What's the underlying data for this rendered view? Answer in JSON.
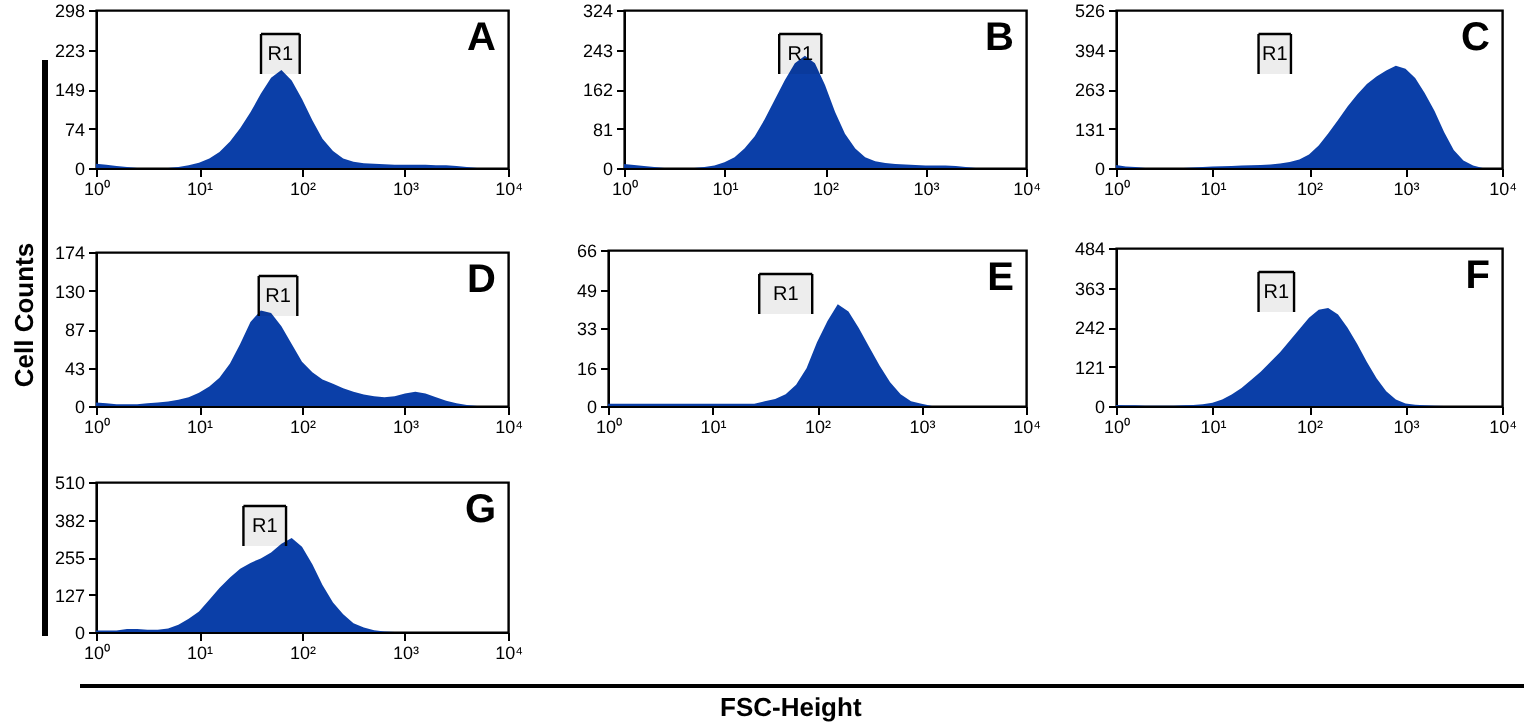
{
  "chart_data": [
    {
      "type": "area",
      "title": "A",
      "log": "x",
      "xlim": [
        1,
        10000
      ],
      "xticks": [
        {
          "value": 1,
          "label": "10⁰"
        },
        {
          "value": 10,
          "label": "10¹"
        },
        {
          "value": 100,
          "label": "10²"
        },
        {
          "value": 1000,
          "label": "10³"
        },
        {
          "value": 10000,
          "label": "10⁴"
        }
      ],
      "ylim": [
        0,
        298
      ],
      "yticks": [
        0,
        74,
        149,
        223,
        298
      ],
      "x": [
        1,
        1.26,
        1.58,
        2,
        2.51,
        3.16,
        3.98,
        5.01,
        6.31,
        7.94,
        10,
        12.6,
        15.8,
        20,
        25.1,
        31.6,
        39.8,
        50.1,
        63.1,
        79.4,
        100,
        126,
        158,
        200,
        251,
        316,
        398,
        501,
        631,
        794,
        1000,
        1260,
        1580,
        2000,
        2510,
        3160,
        3980,
        5010,
        6310,
        7940,
        10000
      ],
      "series": [
        {
          "color": "#0b3fa8",
          "values": [
            8,
            6,
            4,
            2,
            0,
            0,
            0,
            0,
            2,
            5,
            10,
            18,
            30,
            50,
            75,
            105,
            140,
            170,
            185,
            165,
            130,
            90,
            55,
            32,
            18,
            12,
            9,
            8,
            7,
            6,
            6,
            6,
            6,
            5,
            5,
            4,
            2,
            0,
            0,
            0,
            0
          ]
        }
      ],
      "bands": [
        {
          "axis": "x",
          "from": 40,
          "to": 95,
          "label": "R1"
        }
      ]
    },
    {
      "type": "area",
      "title": "B",
      "log": "x",
      "xlim": [
        1,
        10000
      ],
      "xticks": [
        {
          "value": 1,
          "label": "10⁰"
        },
        {
          "value": 10,
          "label": "10¹"
        },
        {
          "value": 100,
          "label": "10²"
        },
        {
          "value": 1000,
          "label": "10³"
        },
        {
          "value": 10000,
          "label": "10⁴"
        }
      ],
      "ylim": [
        0,
        324
      ],
      "yticks": [
        0,
        81,
        162,
        243,
        324
      ],
      "x": [
        1,
        1.26,
        1.58,
        2,
        2.51,
        3.16,
        3.98,
        5.01,
        6.31,
        7.94,
        10,
        12.6,
        15.8,
        20,
        25.1,
        31.6,
        39.8,
        50.1,
        63.1,
        79.4,
        100,
        126,
        158,
        200,
        251,
        316,
        398,
        501,
        631,
        794,
        1000,
        1260,
        1580,
        2000,
        2510,
        3160,
        3980,
        5010,
        6310,
        7940,
        10000
      ],
      "series": [
        {
          "color": "#0b3fa8",
          "values": [
            8,
            6,
            4,
            2,
            0,
            0,
            0,
            0,
            2,
            5,
            12,
            22,
            40,
            65,
            100,
            140,
            180,
            215,
            230,
            215,
            170,
            115,
            70,
            40,
            22,
            14,
            10,
            8,
            7,
            6,
            5,
            5,
            5,
            4,
            2,
            0,
            0,
            0,
            0,
            0,
            0
          ]
        }
      ],
      "bands": [
        {
          "axis": "x",
          "from": 35,
          "to": 92,
          "label": "R1"
        }
      ]
    },
    {
      "type": "area",
      "title": "C",
      "log": "x",
      "xlim": [
        1,
        10000
      ],
      "xticks": [
        {
          "value": 1,
          "label": "10⁰"
        },
        {
          "value": 10,
          "label": "10¹"
        },
        {
          "value": 100,
          "label": "10²"
        },
        {
          "value": 1000,
          "label": "10³"
        },
        {
          "value": 10000,
          "label": "10⁴"
        }
      ],
      "ylim": [
        0,
        526
      ],
      "yticks": [
        0,
        131,
        263,
        394,
        526
      ],
      "x": [
        1,
        1.26,
        1.58,
        2,
        2.51,
        3.16,
        3.98,
        5.01,
        6.31,
        7.94,
        10,
        12.6,
        15.8,
        20,
        25.1,
        31.6,
        39.8,
        50.1,
        63.1,
        79.4,
        100,
        126,
        158,
        200,
        251,
        316,
        398,
        501,
        631,
        794,
        1000,
        1260,
        1580,
        2000,
        2510,
        3160,
        3980,
        5010,
        6310,
        7940,
        10000
      ],
      "series": [
        {
          "color": "#0b3fa8",
          "values": [
            10,
            5,
            3,
            0,
            0,
            0,
            0,
            0,
            2,
            3,
            5,
            6,
            7,
            8,
            9,
            10,
            12,
            15,
            20,
            28,
            45,
            75,
            115,
            160,
            205,
            245,
            280,
            305,
            325,
            340,
            330,
            300,
            250,
            190,
            120,
            60,
            25,
            8,
            0,
            0,
            0
          ]
        }
      ],
      "bands": [
        {
          "axis": "x",
          "from": 30,
          "to": 65,
          "label": "R1"
        }
      ]
    },
    {
      "type": "area",
      "title": "D",
      "ylabel": "Cell Counts",
      "log": "x",
      "xlim": [
        1,
        10000
      ],
      "xticks": [
        {
          "value": 1,
          "label": "10⁰"
        },
        {
          "value": 10,
          "label": "10¹"
        },
        {
          "value": 100,
          "label": "10²"
        },
        {
          "value": 1000,
          "label": "10³"
        },
        {
          "value": 10000,
          "label": "10⁴"
        }
      ],
      "ylim": [
        0,
        174
      ],
      "yticks": [
        0,
        43,
        87,
        130,
        174
      ],
      "x": [
        1,
        1.26,
        1.58,
        2,
        2.51,
        3.16,
        3.98,
        5.01,
        6.31,
        7.94,
        10,
        12.6,
        15.8,
        20,
        25.1,
        31.6,
        39.8,
        50.1,
        63.1,
        79.4,
        100,
        126,
        158,
        200,
        251,
        316,
        398,
        501,
        631,
        794,
        1000,
        1260,
        1580,
        2000,
        2510,
        3160,
        3980,
        5010,
        6310,
        7940,
        10000
      ],
      "series": [
        {
          "color": "#0b3fa8",
          "values": [
            4,
            3,
            2,
            2,
            2,
            3,
            4,
            5,
            7,
            10,
            15,
            22,
            32,
            48,
            70,
            95,
            108,
            105,
            90,
            70,
            50,
            38,
            30,
            25,
            20,
            16,
            13,
            11,
            10,
            11,
            14,
            16,
            14,
            10,
            6,
            3,
            1,
            0,
            0,
            0,
            0
          ]
        }
      ],
      "bands": [
        {
          "axis": "x",
          "from": 38,
          "to": 90,
          "label": "R1"
        }
      ]
    },
    {
      "type": "area",
      "title": "E",
      "log": "x",
      "xlim": [
        1,
        10000
      ],
      "xticks": [
        {
          "value": 1,
          "label": "10⁰"
        },
        {
          "value": 10,
          "label": "10¹"
        },
        {
          "value": 100,
          "label": "10²"
        },
        {
          "value": 1000,
          "label": "10³"
        },
        {
          "value": 10000,
          "label": "10⁴"
        }
      ],
      "ylim": [
        0,
        66
      ],
      "yticks": [
        0,
        16,
        33,
        49,
        66
      ],
      "x": [
        1,
        1.26,
        1.58,
        2,
        2.51,
        3.16,
        3.98,
        5.01,
        6.31,
        7.94,
        10,
        12.6,
        15.8,
        20,
        25.1,
        31.6,
        39.8,
        50.1,
        63.1,
        79.4,
        100,
        126,
        158,
        200,
        251,
        316,
        398,
        501,
        631,
        794,
        1000,
        1260,
        1580,
        2000,
        2510,
        3160,
        3980,
        5010,
        6310,
        7940,
        10000
      ],
      "series": [
        {
          "color": "#0b3fa8",
          "values": [
            1,
            1,
            1,
            1,
            1,
            1,
            1,
            1,
            1,
            1,
            1,
            1,
            1,
            1,
            1,
            2,
            3,
            5,
            9,
            16,
            27,
            36,
            43,
            40,
            33,
            25,
            17,
            10,
            5,
            2,
            1,
            0,
            0,
            0,
            0,
            0,
            0,
            0,
            0,
            0,
            0
          ]
        }
      ],
      "bands": [
        {
          "axis": "x",
          "from": 28,
          "to": 90,
          "label": "R1"
        }
      ]
    },
    {
      "type": "area",
      "title": "F",
      "log": "x",
      "xlim": [
        1,
        10000
      ],
      "xticks": [
        {
          "value": 1,
          "label": "10⁰"
        },
        {
          "value": 10,
          "label": "10¹"
        },
        {
          "value": 100,
          "label": "10²"
        },
        {
          "value": 1000,
          "label": "10³"
        },
        {
          "value": 10000,
          "label": "10⁴"
        }
      ],
      "ylim": [
        0,
        484
      ],
      "yticks": [
        0,
        121,
        242,
        363,
        484
      ],
      "x": [
        1,
        1.26,
        1.58,
        2,
        2.51,
        3.16,
        3.98,
        5.01,
        6.31,
        7.94,
        10,
        12.6,
        15.8,
        20,
        25.1,
        31.6,
        39.8,
        50.1,
        63.1,
        79.4,
        100,
        126,
        158,
        200,
        251,
        316,
        398,
        501,
        631,
        794,
        1000,
        1260,
        1580,
        2000,
        2510,
        3160,
        3980,
        5010,
        6310,
        7940,
        10000
      ],
      "series": [
        {
          "color": "#0b3fa8",
          "values": [
            3,
            2,
            2,
            1,
            1,
            1,
            1,
            2,
            3,
            5,
            10,
            20,
            35,
            55,
            80,
            105,
            135,
            165,
            200,
            235,
            270,
            295,
            300,
            280,
            240,
            190,
            135,
            85,
            45,
            20,
            8,
            4,
            2,
            1,
            0,
            0,
            0,
            0,
            0,
            0,
            0
          ]
        }
      ],
      "bands": [
        {
          "axis": "x",
          "from": 30,
          "to": 70,
          "label": "R1"
        }
      ]
    },
    {
      "type": "area",
      "title": "G",
      "annotations": [
        "FSC-Height"
      ],
      "log": "x",
      "xlim": [
        1,
        10000
      ],
      "xticks": [
        {
          "value": 1,
          "label": "10⁰"
        },
        {
          "value": 10,
          "label": "10¹"
        },
        {
          "value": 100,
          "label": "10²"
        },
        {
          "value": 1000,
          "label": "10³"
        },
        {
          "value": 10000,
          "label": "10⁴"
        }
      ],
      "ylim": [
        0,
        510
      ],
      "yticks": [
        0,
        127,
        255,
        382,
        510
      ],
      "x": [
        1,
        1.26,
        1.58,
        2,
        2.51,
        3.16,
        3.98,
        5.01,
        6.31,
        7.94,
        10,
        12.6,
        15.8,
        20,
        25.1,
        31.6,
        39.8,
        50.1,
        63.1,
        79.4,
        100,
        126,
        158,
        200,
        251,
        316,
        398,
        501,
        631,
        794,
        1000,
        1260,
        1580,
        2000,
        2510,
        3160,
        3980,
        5010,
        6310,
        7940,
        10000
      ],
      "series": [
        {
          "color": "#0b3fa8",
          "values": [
            5,
            5,
            5,
            10,
            10,
            8,
            8,
            12,
            25,
            45,
            70,
            110,
            150,
            185,
            215,
            235,
            250,
            270,
            300,
            320,
            290,
            230,
            160,
            100,
            60,
            30,
            15,
            6,
            2,
            0,
            0,
            0,
            0,
            0,
            0,
            0,
            0,
            0,
            0,
            0,
            0
          ]
        }
      ],
      "bands": [
        {
          "axis": "x",
          "from": 27,
          "to": 70,
          "label": "R1"
        }
      ]
    }
  ]
}
